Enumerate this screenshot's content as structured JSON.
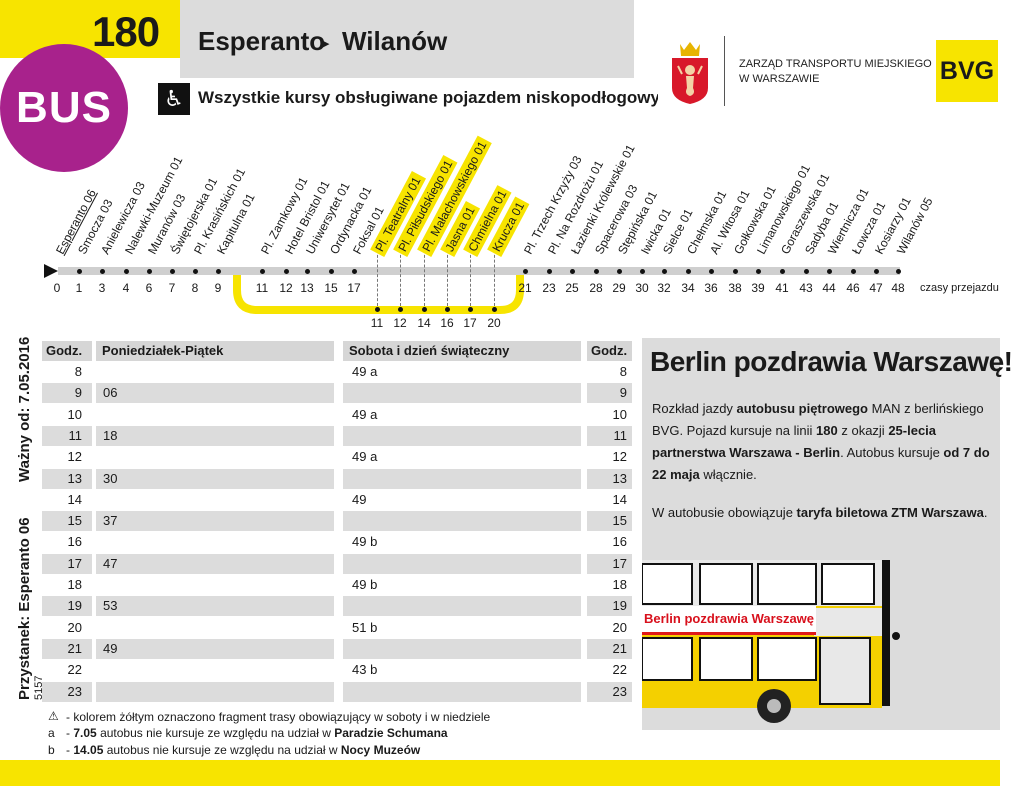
{
  "header": {
    "line_number": "180",
    "route_from": "Esperanto",
    "route_arrow": "▸",
    "route_to": "Wilanów",
    "mode_badge": "BUS",
    "lowfloor_note": "Wszystkie kursy obsługiwane pojazdem niskopodłogowym",
    "wheelchair_icon": "wheelchair-icon",
    "operator_line1": "ZARZĄD TRANSPORTU MIEJSKIEGO",
    "operator_line2": "W WARSZAWIE",
    "partner_logo": "BVG"
  },
  "colors": {
    "accent_yellow": "#f7e400",
    "bus_purple": "#a8228c",
    "grey": "#dcdcdc"
  },
  "stops_main": [
    {
      "name": "Esperanto 06",
      "time": "0"
    },
    {
      "name": "Smocza 03",
      "time": "1"
    },
    {
      "name": "Anielewicza 03",
      "time": "3"
    },
    {
      "name": "Nalewki-Muzeum 01",
      "time": "4"
    },
    {
      "name": "Muranów 03",
      "time": "6"
    },
    {
      "name": "Świętojerska 01",
      "time": "7"
    },
    {
      "name": "Pl. Krasińskich 01",
      "time": "8"
    },
    {
      "name": "Kapitulna 01",
      "time": "9"
    },
    {
      "name": "Pl. Zamkowy 01",
      "time": "11"
    },
    {
      "name": "Hotel Bristol 01",
      "time": "12"
    },
    {
      "name": "Uniwersytet 01",
      "time": "13"
    },
    {
      "name": "Ordynacka 01",
      "time": "15"
    },
    {
      "name": "Foksal 01",
      "time": "17"
    },
    {
      "name": "Pl. Trzech Krzyży 03",
      "time": "21"
    },
    {
      "name": "Pl. Na Rozdrożu 01",
      "time": "23"
    },
    {
      "name": "Łazienki Królewskie 01",
      "time": "25"
    },
    {
      "name": "Spacerowa 03",
      "time": "28"
    },
    {
      "name": "Stępińska 01",
      "time": "29"
    },
    {
      "name": "Iwicka 01",
      "time": "30"
    },
    {
      "name": "Sielce 01",
      "time": "32"
    },
    {
      "name": "Chełmska 01",
      "time": "34"
    },
    {
      "name": "Al. Witosa 01",
      "time": "36"
    },
    {
      "name": "Gołkowska 01",
      "time": "38"
    },
    {
      "name": "Limanowskiego 01",
      "time": "39"
    },
    {
      "name": "Goraszewska 01",
      "time": "41"
    },
    {
      "name": "Sadyba 01",
      "time": "43"
    },
    {
      "name": "Wiertnicza 01",
      "time": "44"
    },
    {
      "name": "Łowcza 01",
      "time": "46"
    },
    {
      "name": "Kosiarzy 01",
      "time": "47"
    },
    {
      "name": "Wilanów 05",
      "time": "48"
    }
  ],
  "stops_weekend": [
    {
      "name": "Pl. Teatralny 01",
      "time": "11"
    },
    {
      "name": "Pl. Piłsudskiego 01",
      "time": "12"
    },
    {
      "name": "Pl. Małachowskiego 01",
      "time": "14"
    },
    {
      "name": "Jasna 01",
      "time": "16"
    },
    {
      "name": "Chmielna 01",
      "time": "17"
    },
    {
      "name": "Krucza 01",
      "time": "20"
    }
  ],
  "travel_times_label": "czasy przejazdu",
  "timetable": {
    "hour_header": "Godz.",
    "weekday_header": "Poniedziałek-Piątek",
    "weekend_header": "Sobota i dzień świąteczny",
    "rows": [
      {
        "hour": "8",
        "weekday": "",
        "weekend": "49 a"
      },
      {
        "hour": "9",
        "weekday": "06",
        "weekend": ""
      },
      {
        "hour": "10",
        "weekday": "",
        "weekend": "49 a"
      },
      {
        "hour": "11",
        "weekday": "18",
        "weekend": ""
      },
      {
        "hour": "12",
        "weekday": "",
        "weekend": "49 a"
      },
      {
        "hour": "13",
        "weekday": "30",
        "weekend": ""
      },
      {
        "hour": "14",
        "weekday": "",
        "weekend": "49"
      },
      {
        "hour": "15",
        "weekday": "37",
        "weekend": ""
      },
      {
        "hour": "16",
        "weekday": "",
        "weekend": "49 b"
      },
      {
        "hour": "17",
        "weekday": "47",
        "weekend": ""
      },
      {
        "hour": "18",
        "weekday": "",
        "weekend": "49 b"
      },
      {
        "hour": "19",
        "weekday": "53",
        "weekend": ""
      },
      {
        "hour": "20",
        "weekday": "",
        "weekend": "51 b"
      },
      {
        "hour": "21",
        "weekday": "49",
        "weekend": ""
      },
      {
        "hour": "22",
        "weekday": "",
        "weekend": "43 b"
      },
      {
        "hour": "23",
        "weekday": "",
        "weekend": ""
      }
    ]
  },
  "side": {
    "valid_from": "Ważny od: 7.05.2016",
    "stop_label": "Przystanek: Esperanto 06",
    "stop_code": "5157"
  },
  "info": {
    "title": "Berlin pozdrawia Warszawę!",
    "p1": [
      {
        "t": "Rozkład jazdy ",
        "b": false
      },
      {
        "t": "autobusu piętrowego",
        "b": true
      },
      {
        "t": " MAN z berlińskiego BVG. Pojazd kursuje na linii ",
        "b": false
      },
      {
        "t": "180",
        "b": true
      },
      {
        "t": " z okazji ",
        "b": false
      },
      {
        "t": "25-lecia partnerstwa Warszawa - Berlin",
        "b": true
      },
      {
        "t": ". Autobus kursuje ",
        "b": false
      },
      {
        "t": "od 7 do 22 maja",
        "b": true
      },
      {
        "t": " włącznie.",
        "b": false
      }
    ],
    "p2": [
      {
        "t": "W autobusie obowiązuje ",
        "b": false
      },
      {
        "t": "taryfa biletowa ZTM Warszawa",
        "b": true
      },
      {
        "t": ".",
        "b": false
      }
    ],
    "bus_banner": "Berlin pozdrawia Warszawę"
  },
  "footnotes": {
    "yellow_note": "- kolorem żółtym oznaczono fragment trasy obowiązujący w soboty i w niedziele",
    "a_marker": "a",
    "a_prefix": "- ",
    "a_date": "7.05",
    "a_mid": " autobus nie kursuje ze względu na udział w ",
    "a_event": "Paradzie Schumana",
    "b_marker": "b",
    "b_prefix": "- ",
    "b_date": "14.05",
    "b_mid": " autobus nie kursuje ze względu na udział w ",
    "b_event": "Nocy Muzeów"
  }
}
